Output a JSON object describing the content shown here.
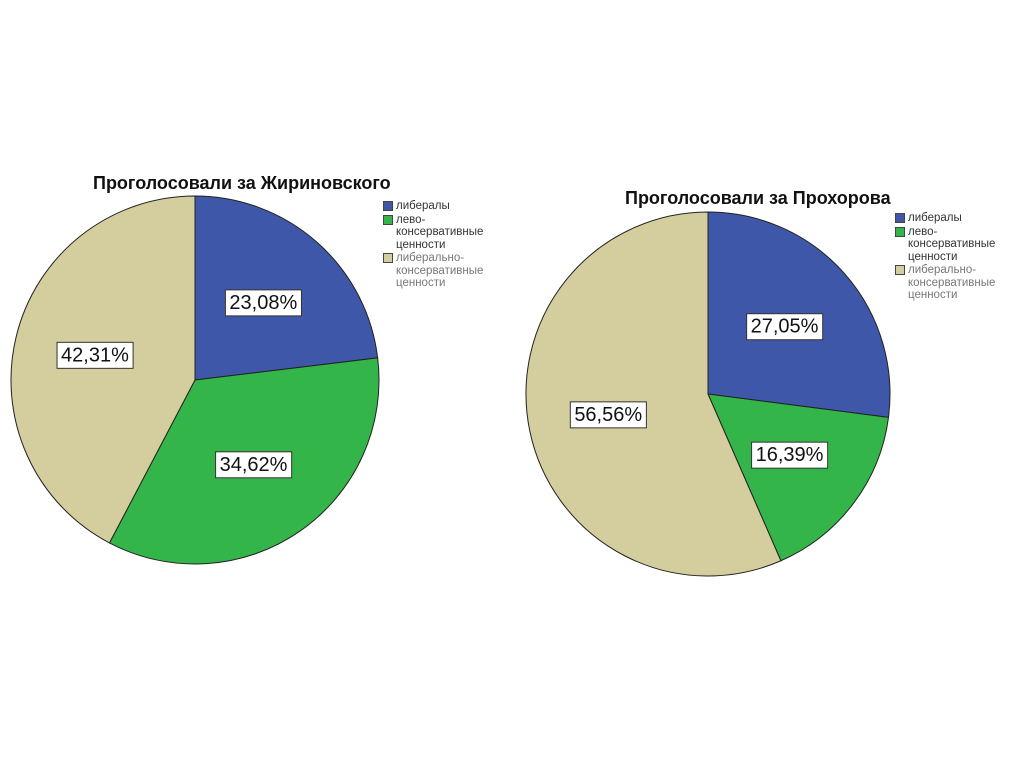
{
  "chart_data": [
    {
      "type": "pie",
      "title": "Проголосовали за Жириновского",
      "categories": [
        "либералы",
        "лево-\nконсервативные\nценности",
        "либерально-\nконсервативные\nценности"
      ],
      "values": [
        23.08,
        34.62,
        42.31
      ],
      "labels": [
        "23,08%",
        "34,62%",
        "42,31%"
      ],
      "colors": [
        "#3f57a8",
        "#34b54a",
        "#d4ce9e"
      ],
      "legend_position": "top-right",
      "legend_text_colors": [
        "#333333",
        "#333333",
        "#777777"
      ]
    },
    {
      "type": "pie",
      "title": "Проголосовали за Прохорова",
      "categories": [
        "либералы",
        "лево-\nконсервативные\nценности",
        "либерально-\nконсервативные\nценности"
      ],
      "values": [
        27.05,
        16.39,
        56.56
      ],
      "labels": [
        "27,05%",
        "16,39%",
        "56,56%"
      ],
      "colors": [
        "#3f57a8",
        "#34b54a",
        "#d4ce9e"
      ],
      "legend_position": "top-right",
      "legend_text_colors": [
        "#333333",
        "#333333",
        "#777777"
      ]
    }
  ]
}
